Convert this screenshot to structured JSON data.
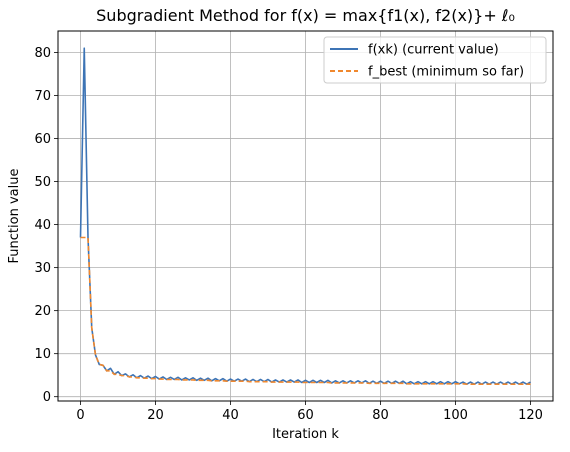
{
  "chart_data": {
    "type": "line",
    "title": "Subgradient Method for f(x) = max{f1(x), f2(x)}+ ℓ₀",
    "xlabel": "Iteration k",
    "ylabel": "Function value",
    "xlim": [
      -6,
      126
    ],
    "ylim": [
      -1,
      85
    ],
    "xticks": [
      0,
      20,
      40,
      60,
      80,
      100,
      120
    ],
    "yticks": [
      0,
      10,
      20,
      30,
      40,
      50,
      60,
      70,
      80
    ],
    "grid": true,
    "legend_position": "top-right",
    "series": [
      {
        "name": "f(xk) (current value)",
        "color": "#3d74b5",
        "style": "solid",
        "values": [
          37,
          81,
          37,
          16,
          9.7,
          7.5,
          7.3,
          6.0,
          6.6,
          5.2,
          5.8,
          4.9,
          5.3,
          4.6,
          5.1,
          4.4,
          4.9,
          4.3,
          4.8,
          4.2,
          4.7,
          4.1,
          4.6,
          4.0,
          4.5,
          4.0,
          4.5,
          3.9,
          4.4,
          3.9,
          4.4,
          3.8,
          4.3,
          3.8,
          4.3,
          3.7,
          4.2,
          3.7,
          4.2,
          3.6,
          4.1,
          3.6,
          4.1,
          3.6,
          4.1,
          3.5,
          4.0,
          3.5,
          4.0,
          3.5,
          4.0,
          3.4,
          3.9,
          3.4,
          3.9,
          3.4,
          3.9,
          3.4,
          3.9,
          3.3,
          3.8,
          3.3,
          3.8,
          3.3,
          3.8,
          3.3,
          3.8,
          3.2,
          3.7,
          3.2,
          3.7,
          3.2,
          3.7,
          3.2,
          3.7,
          3.2,
          3.7,
          3.1,
          3.6,
          3.1,
          3.6,
          3.1,
          3.6,
          3.1,
          3.6,
          3.1,
          3.6,
          3.0,
          3.5,
          3.0,
          3.5,
          3.0,
          3.5,
          3.0,
          3.5,
          3.0,
          3.5,
          3.0,
          3.5,
          3.0,
          3.5,
          3.0,
          3.4,
          2.9,
          3.4,
          2.9,
          3.4,
          2.9,
          3.4,
          2.9,
          3.4,
          2.9,
          3.4,
          2.9,
          3.4,
          2.9,
          3.4,
          2.9,
          3.4,
          2.9,
          3.4
        ]
      },
      {
        "name": "f_best (minimum so far)",
        "color": "#f0882e",
        "style": "dashed",
        "values": [
          37,
          37,
          37,
          16,
          9.7,
          7.5,
          7.3,
          6.0,
          6.0,
          5.2,
          5.2,
          4.9,
          4.9,
          4.6,
          4.6,
          4.4,
          4.4,
          4.3,
          4.3,
          4.2,
          4.2,
          4.1,
          4.1,
          4.0,
          4.0,
          4.0,
          4.0,
          3.9,
          3.9,
          3.9,
          3.9,
          3.8,
          3.8,
          3.8,
          3.8,
          3.7,
          3.7,
          3.7,
          3.7,
          3.6,
          3.6,
          3.6,
          3.6,
          3.6,
          3.6,
          3.5,
          3.5,
          3.5,
          3.5,
          3.5,
          3.5,
          3.4,
          3.4,
          3.4,
          3.4,
          3.4,
          3.4,
          3.4,
          3.4,
          3.3,
          3.3,
          3.3,
          3.3,
          3.3,
          3.3,
          3.3,
          3.3,
          3.2,
          3.2,
          3.2,
          3.2,
          3.2,
          3.2,
          3.2,
          3.2,
          3.2,
          3.2,
          3.1,
          3.1,
          3.1,
          3.1,
          3.1,
          3.1,
          3.1,
          3.1,
          3.1,
          3.1,
          3.0,
          3.0,
          3.0,
          3.0,
          3.0,
          3.0,
          3.0,
          3.0,
          3.0,
          3.0,
          3.0,
          3.0,
          3.0,
          3.0,
          3.0,
          3.0,
          2.9,
          2.9,
          2.9,
          2.9,
          2.9,
          2.9,
          2.9,
          2.9,
          2.9,
          2.9,
          2.9,
          2.9,
          2.9,
          2.9,
          2.9,
          2.9,
          2.9,
          2.9
        ]
      }
    ]
  }
}
